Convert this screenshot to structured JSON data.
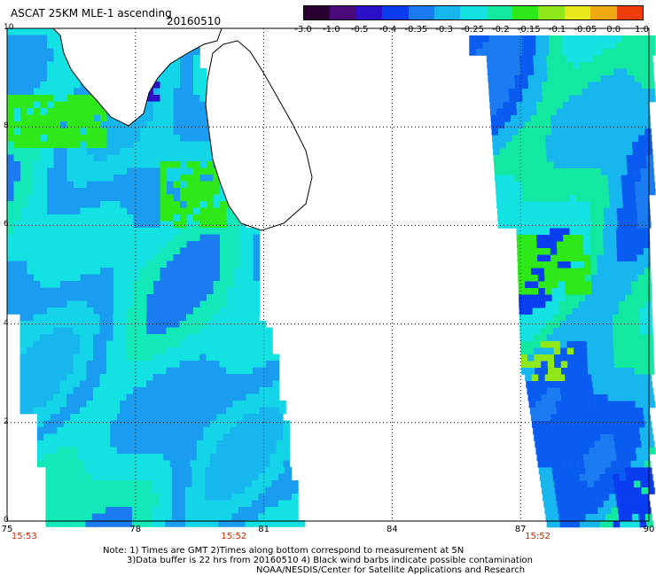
{
  "header": {
    "title": "ASCAT 25KM MLE-1 ascending",
    "date": "20160510"
  },
  "colorbar": {
    "tick_labels": [
      "-3.0",
      "-1.0",
      "-0.5",
      "-0.4",
      "-0.35",
      "-0.3",
      "-0.25",
      "-0.2",
      "-0.15",
      "-0.1",
      "-0.05",
      "0.0",
      "1.0"
    ],
    "colors": [
      "#2a0030",
      "#4b0a7a",
      "#2a10c8",
      "#0a3cf0",
      "#1a7cf0",
      "#17b6ee",
      "#14e2e2",
      "#12e8a0",
      "#2ee81a",
      "#8ee81a",
      "#e8e81a",
      "#f0a810",
      "#ee3c08"
    ]
  },
  "axes": {
    "lon_labels": [
      "75",
      "78",
      "81",
      "84",
      "87",
      "90"
    ],
    "lat_labels": [
      "10",
      "8",
      "6",
      "4",
      "2",
      "0"
    ],
    "lon_range": [
      75,
      90
    ],
    "lat_range": [
      0,
      10
    ],
    "time_labels": [
      "15:53",
      "15:52",
      "15:52"
    ],
    "time_label_positions_lon": [
      75.4,
      80.3,
      87.4
    ]
  },
  "map": {
    "land_fill": "#ffffff",
    "coastline_color": "#000000",
    "grid_lines": "dotted",
    "swaths": [
      {
        "name": "west-swath",
        "lon_range": [
          75,
          81.8
        ],
        "palette_bias": "cyan-blue"
      },
      {
        "name": "east-swath",
        "lon_range": [
          85.7,
          90
        ],
        "palette_bias": "blue-green"
      }
    ]
  },
  "notes": {
    "line1": "Note: 1) Times are GMT 2)Times along bottom correspond to measurement at 5N",
    "line2": "3)Data buffer is 22 hrs from 20160510 4) Black wind barbs indicate possible contamination",
    "line3": "NOAA/NESDIS/Center for Satellite Applications and Research"
  }
}
